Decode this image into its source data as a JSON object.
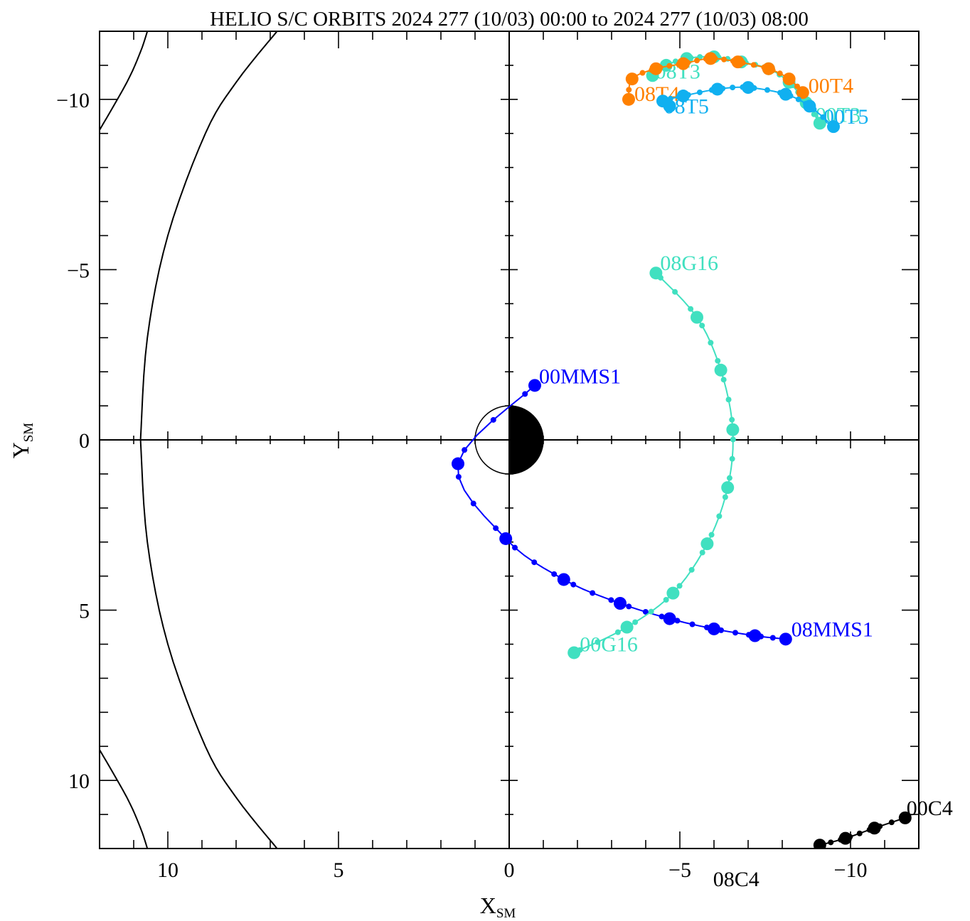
{
  "chart_data": {
    "type": "scatter",
    "title": "HELIO S/C ORBITS 2024 277 (10/03) 00:00 to 2024 277 (10/03) 08:00",
    "xlabel": "X",
    "xlabel_sub": "SM",
    "ylabel": "Y",
    "ylabel_sub": "SM",
    "xlim": [
      12,
      -12
    ],
    "ylim": [
      -12,
      12
    ],
    "y_axis_inverted": true,
    "x_ticks": [
      {
        "value": 10,
        "label": "10"
      },
      {
        "value": 5,
        "label": "5"
      },
      {
        "value": 0,
        "label": "0"
      },
      {
        "value": -5,
        "label": "−5"
      },
      {
        "value": -10,
        "label": "−10"
      }
    ],
    "y_ticks": [
      {
        "value": -10,
        "label": "−10"
      },
      {
        "value": -5,
        "label": "−5"
      },
      {
        "value": 0,
        "label": "0"
      },
      {
        "value": 5,
        "label": "5"
      },
      {
        "value": 10,
        "label": "10"
      }
    ],
    "minor_tick_step": 1,
    "boundaries": [
      {
        "name": "magnetopause",
        "color": "#000000",
        "points": [
          [
            10.8,
            0
          ],
          [
            10.6,
            -3
          ],
          [
            10,
            -6
          ],
          [
            8.9,
            -9
          ],
          [
            8,
            -10.5
          ],
          [
            6.8,
            -12
          ]
        ]
      },
      {
        "name": "magnetopause",
        "color": "#000000",
        "points": [
          [
            10.8,
            0
          ],
          [
            10.6,
            3
          ],
          [
            10,
            6
          ],
          [
            8.9,
            9
          ],
          [
            8,
            10.5
          ],
          [
            6.8,
            12
          ]
        ]
      },
      {
        "name": "bow-shock",
        "color": "#000000",
        "points": [
          [
            12,
            -9.1
          ],
          [
            11.2,
            -10.5
          ],
          [
            10.8,
            -11.4
          ],
          [
            10.6,
            -12
          ]
        ]
      },
      {
        "name": "bow-shock",
        "color": "#000000",
        "points": [
          [
            12,
            9.1
          ],
          [
            11.2,
            10.5
          ],
          [
            10.8,
            11.4
          ],
          [
            10.6,
            12
          ]
        ]
      }
    ],
    "series": [
      {
        "color": "#0000ff",
        "start_label": "00MMS1",
        "end_label": "08MMS1",
        "start_label_offset": [
          6,
          -3
        ],
        "end_label_offset": [
          8,
          -4
        ],
        "points": [
          [
            -0.75,
            -1.6
          ],
          [
            1.5,
            0.7
          ],
          [
            0.1,
            2.9
          ],
          [
            -1.6,
            4.1
          ],
          [
            -3.25,
            4.8
          ],
          [
            -4.7,
            5.25
          ],
          [
            -6.0,
            5.55
          ],
          [
            -7.2,
            5.75
          ],
          [
            -8.1,
            5.85
          ]
        ]
      },
      {
        "color": "#40e0c0",
        "start_label": "00G16",
        "end_label": "08G16",
        "start_label_offset": [
          8,
          -2
        ],
        "end_label_offset": [
          6,
          -4
        ],
        "points": [
          [
            -1.9,
            6.25
          ],
          [
            -3.45,
            5.5
          ],
          [
            -4.8,
            4.5
          ],
          [
            -5.8,
            3.05
          ],
          [
            -6.4,
            1.4
          ],
          [
            -6.55,
            -0.3
          ],
          [
            -6.2,
            -2.05
          ],
          [
            -5.5,
            -3.6
          ],
          [
            -4.3,
            -4.9
          ]
        ]
      },
      {
        "color": "#40e0c0",
        "start_label": "00T3",
        "end_label": "08T3",
        "start_label_offset": [
          -6,
          -2
        ],
        "end_label_offset": [
          4,
          4
        ],
        "points": [
          [
            -9.1,
            -9.3
          ],
          [
            -8.7,
            -9.9
          ],
          [
            -8.2,
            -10.5
          ],
          [
            -7.6,
            -10.9
          ],
          [
            -6.8,
            -11.1
          ],
          [
            -6.0,
            -11.25
          ],
          [
            -5.2,
            -11.2
          ],
          [
            -4.6,
            -11.0
          ],
          [
            -4.2,
            -10.7
          ]
        ]
      },
      {
        "color": "#ff8000",
        "start_label": "00T4",
        "end_label": "08T4",
        "start_label_offset": [
          8,
          0
        ],
        "end_label_offset": [
          8,
          2
        ],
        "points": [
          [
            -8.6,
            -10.2
          ],
          [
            -8.2,
            -10.6
          ],
          [
            -7.6,
            -10.9
          ],
          [
            -6.7,
            -11.1
          ],
          [
            -5.9,
            -11.2
          ],
          [
            -5.1,
            -11.05
          ],
          [
            -4.3,
            -10.9
          ],
          [
            -3.6,
            -10.6
          ],
          [
            -3.5,
            -10.0
          ]
        ]
      },
      {
        "color": "#10b0f0",
        "start_label": "00T5",
        "end_label": "08T5",
        "start_label_offset": [
          -14,
          -4
        ],
        "end_label_offset": [
          -8,
          10
        ],
        "points": [
          [
            -9.5,
            -9.2
          ],
          [
            -8.8,
            -9.8
          ],
          [
            -8.1,
            -10.15
          ],
          [
            -7.0,
            -10.35
          ],
          [
            -6.1,
            -10.3
          ],
          [
            -5.1,
            -10.1
          ],
          [
            -4.5,
            -9.95
          ],
          [
            -4.7,
            -9.8
          ]
        ]
      },
      {
        "color": "#000000",
        "start_label": "00C4",
        "end_label": "08C4",
        "start_label_offset": [
          2,
          -4
        ],
        "end_label_offset": [
          -150,
          58
        ],
        "points": [
          [
            -11.6,
            11.1
          ],
          [
            -10.7,
            11.4
          ],
          [
            -9.85,
            11.7
          ],
          [
            -9.1,
            11.9
          ]
        ]
      }
    ]
  }
}
